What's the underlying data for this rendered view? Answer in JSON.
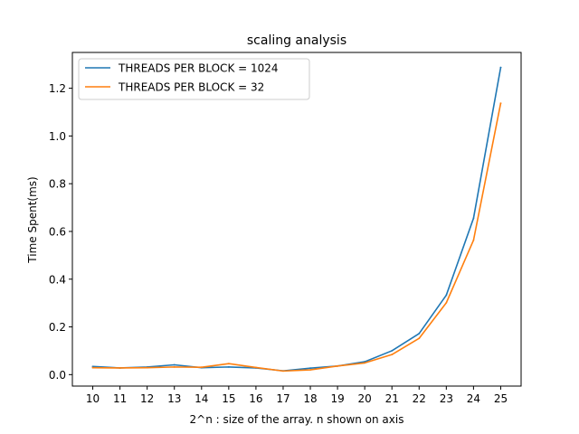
{
  "chart_data": {
    "type": "line",
    "title": "scaling analysis",
    "xlabel": "2^n : size of the array. n shown on axis",
    "ylabel": "Time Spent(ms)",
    "x": [
      10,
      11,
      12,
      13,
      14,
      15,
      16,
      17,
      18,
      19,
      20,
      21,
      22,
      23,
      24,
      25
    ],
    "xlim": [
      9.25,
      25.75
    ],
    "ylim": [
      -0.048,
      1.35
    ],
    "yticks": [
      0.0,
      0.2,
      0.4,
      0.6,
      0.8,
      1.0,
      1.2
    ],
    "ytick_labels": [
      "0.0",
      "0.2",
      "0.4",
      "0.6",
      "0.8",
      "1.0",
      "1.2"
    ],
    "xtick_labels": [
      "10",
      "11",
      "12",
      "13",
      "14",
      "15",
      "16",
      "17",
      "18",
      "19",
      "20",
      "21",
      "22",
      "23",
      "24",
      "25"
    ],
    "grid": false,
    "legend_position": "top-left",
    "series": [
      {
        "name": "THREADS PER BLOCK = 1024",
        "color": "#1f77b4",
        "values": [
          0.034,
          0.028,
          0.032,
          0.041,
          0.029,
          0.032,
          0.028,
          0.016,
          0.027,
          0.036,
          0.054,
          0.1,
          0.172,
          0.333,
          0.655,
          1.287
        ]
      },
      {
        "name": "THREADS PER BLOCK = 32",
        "color": "#ff7f0e",
        "values": [
          0.029,
          0.028,
          0.029,
          0.032,
          0.031,
          0.046,
          0.03,
          0.015,
          0.02,
          0.036,
          0.049,
          0.084,
          0.152,
          0.301,
          0.563,
          1.137
        ]
      }
    ]
  }
}
